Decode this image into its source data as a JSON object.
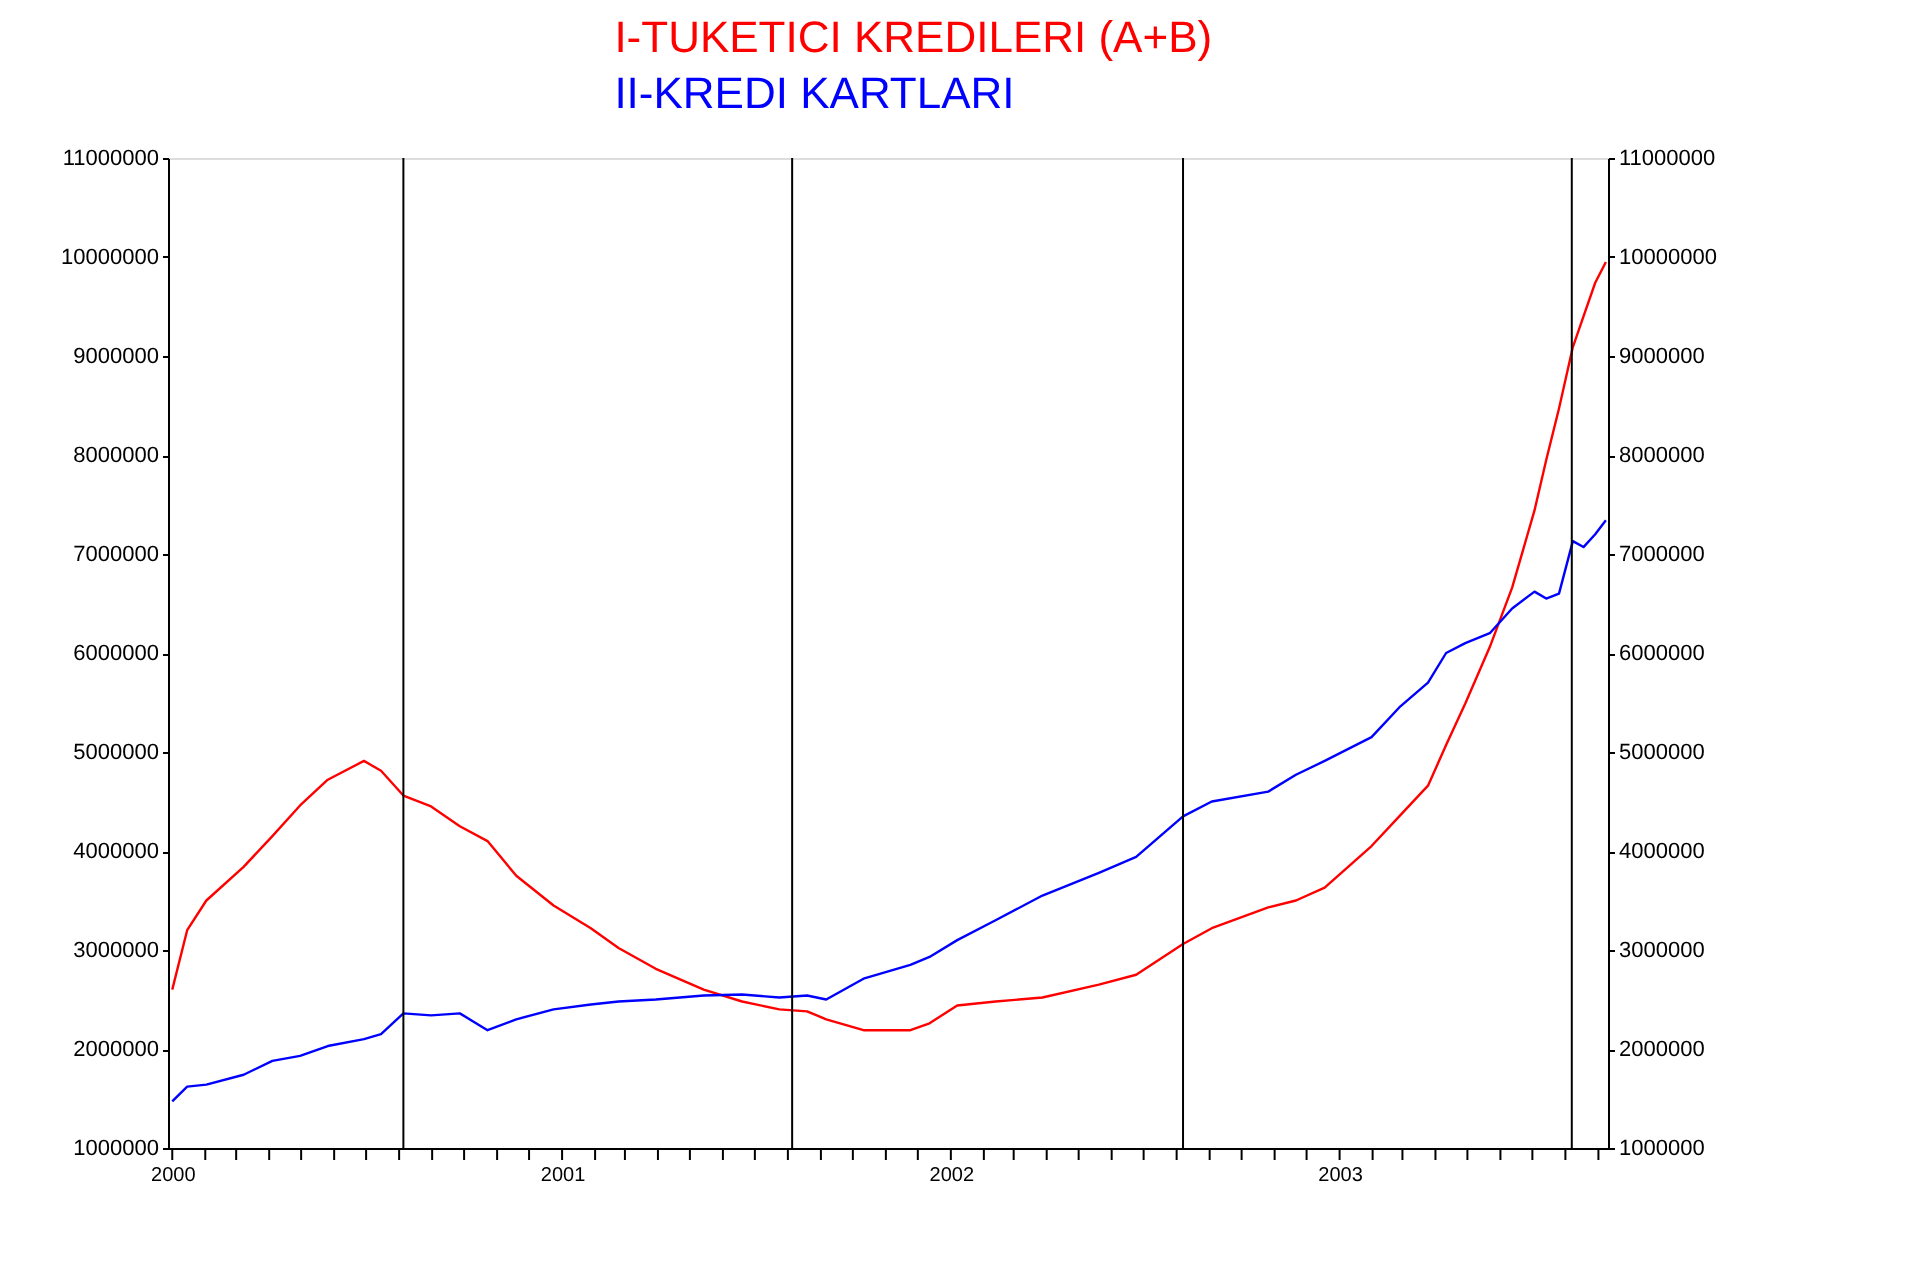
{
  "chart_data": {
    "type": "line",
    "legend": "top",
    "grid": false,
    "xlim": [
      "1999-12-28",
      "2003-09-10"
    ],
    "xticks": [
      {
        "value": "2000-01-01",
        "label": "2000"
      },
      {
        "value": "2000-02-01",
        "label": null
      },
      {
        "value": "2000-03-01",
        "label": null
      },
      {
        "value": "2000-04-01",
        "label": null
      },
      {
        "value": "2000-05-01",
        "label": null
      },
      {
        "value": "2000-06-01",
        "label": null
      },
      {
        "value": "2000-07-01",
        "label": null
      },
      {
        "value": "2000-08-01",
        "label": null
      },
      {
        "value": "2000-09-01",
        "label": null
      },
      {
        "value": "2000-10-01",
        "label": null
      },
      {
        "value": "2000-11-01",
        "label": null
      },
      {
        "value": "2000-12-01",
        "label": null
      },
      {
        "value": "2001-01-01",
        "label": "2001"
      },
      {
        "value": "2001-02-01",
        "label": null
      },
      {
        "value": "2001-03-01",
        "label": null
      },
      {
        "value": "2001-04-01",
        "label": null
      },
      {
        "value": "2001-05-01",
        "label": null
      },
      {
        "value": "2001-06-01",
        "label": null
      },
      {
        "value": "2001-07-01",
        "label": null
      },
      {
        "value": "2001-08-01",
        "label": null
      },
      {
        "value": "2001-09-01",
        "label": null
      },
      {
        "value": "2001-10-01",
        "label": null
      },
      {
        "value": "2001-11-01",
        "label": null
      },
      {
        "value": "2001-12-01",
        "label": null
      },
      {
        "value": "2002-01-01",
        "label": "2002"
      },
      {
        "value": "2002-02-01",
        "label": null
      },
      {
        "value": "2002-03-01",
        "label": null
      },
      {
        "value": "2002-04-01",
        "label": null
      },
      {
        "value": "2002-05-01",
        "label": null
      },
      {
        "value": "2002-06-01",
        "label": null
      },
      {
        "value": "2002-07-01",
        "label": null
      },
      {
        "value": "2002-08-01",
        "label": null
      },
      {
        "value": "2002-09-01",
        "label": null
      },
      {
        "value": "2002-10-01",
        "label": null
      },
      {
        "value": "2002-11-01",
        "label": null
      },
      {
        "value": "2002-12-01",
        "label": null
      },
      {
        "value": "2003-01-01",
        "label": "2003"
      },
      {
        "value": "2003-02-01",
        "label": null
      },
      {
        "value": "2003-03-01",
        "label": null
      },
      {
        "value": "2003-04-01",
        "label": null
      },
      {
        "value": "2003-05-01",
        "label": null
      },
      {
        "value": "2003-06-01",
        "label": null
      },
      {
        "value": "2003-07-01",
        "label": null
      },
      {
        "value": "2003-08-01",
        "label": null
      },
      {
        "value": "2003-09-01",
        "label": null
      }
    ],
    "ylim": [
      1000000,
      11000000
    ],
    "yticks": [
      1000000,
      2000000,
      3000000,
      4000000,
      5000000,
      6000000,
      7000000,
      8000000,
      9000000,
      10000000,
      11000000
    ],
    "y2lim": [
      1000000,
      11000000
    ],
    "y2ticks": [
      1000000,
      2000000,
      3000000,
      4000000,
      5000000,
      6000000,
      7000000,
      8000000,
      9000000,
      10000000,
      11000000
    ],
    "x": [
      "2000-01-01",
      "2000-01-15",
      "2000-02-02",
      "2000-03-08",
      "2000-04-04",
      "2000-04-30",
      "2000-05-26",
      "2000-06-29",
      "2000-07-15",
      "2000-08-05",
      "2000-08-31",
      "2000-09-27",
      "2000-10-23",
      "2000-11-19",
      "2000-12-24",
      "2001-01-28",
      "2001-02-23",
      "2001-03-30",
      "2001-05-14",
      "2001-06-19",
      "2001-07-24",
      "2001-08-19",
      "2001-09-06",
      "2001-10-11",
      "2001-11-24",
      "2001-12-12",
      "2002-01-07",
      "2002-02-12",
      "2002-03-28",
      "2002-05-20",
      "2002-06-24",
      "2002-08-07",
      "2002-09-03",
      "2002-10-26",
      "2002-11-21",
      "2002-12-18",
      "2003-01-31",
      "2003-02-26",
      "2003-03-25",
      "2003-04-11",
      "2003-04-29",
      "2003-05-22",
      "2003-06-12",
      "2003-07-03",
      "2003-07-14",
      "2003-07-26",
      "2003-08-08",
      "2003-08-18",
      "2003-08-29",
      "2003-09-08"
    ],
    "series": [
      {
        "name": "I-TUKETICI KREDILERI (A+B)",
        "color": "#ff0000",
        "values": [
          2600000,
          3200000,
          3500000,
          3840000,
          4150000,
          4460000,
          4720000,
          4910000,
          4810000,
          4560000,
          4450000,
          4250000,
          4100000,
          3750000,
          3450000,
          3220000,
          3020000,
          2810000,
          2600000,
          2480000,
          2400000,
          2380000,
          2300000,
          2190000,
          2190000,
          2260000,
          2440000,
          2480000,
          2520000,
          2650000,
          2750000,
          3060000,
          3220000,
          3430000,
          3500000,
          3630000,
          4050000,
          4350000,
          4660000,
          5070000,
          5490000,
          6060000,
          6660000,
          7440000,
          7950000,
          8470000,
          9090000,
          9400000,
          9740000,
          9950000
        ]
      },
      {
        "name": "II-KREDI KARTLARI",
        "color": "#0000ff",
        "values": [
          1470000,
          1620000,
          1640000,
          1740000,
          1880000,
          1930000,
          2030000,
          2100000,
          2150000,
          2360000,
          2340000,
          2360000,
          2190000,
          2300000,
          2400000,
          2450000,
          2480000,
          2500000,
          2540000,
          2550000,
          2520000,
          2540000,
          2500000,
          2710000,
          2850000,
          2930000,
          3100000,
          3300000,
          3550000,
          3780000,
          3940000,
          4350000,
          4500000,
          4600000,
          4770000,
          4910000,
          5150000,
          5450000,
          5700000,
          6000000,
          6100000,
          6200000,
          6450000,
          6620000,
          6550000,
          6600000,
          7130000,
          7070000,
          7200000,
          7340000
        ]
      }
    ],
    "ref_lines": [
      {
        "axis": "x",
        "value": "2000-08-05",
        "color": "#000000"
      },
      {
        "axis": "x",
        "value": "2001-08-05",
        "color": "#000000"
      },
      {
        "axis": "x",
        "value": "2002-08-07",
        "color": "#000000"
      },
      {
        "axis": "x",
        "value": "2003-08-07",
        "color": "#000000"
      }
    ]
  }
}
